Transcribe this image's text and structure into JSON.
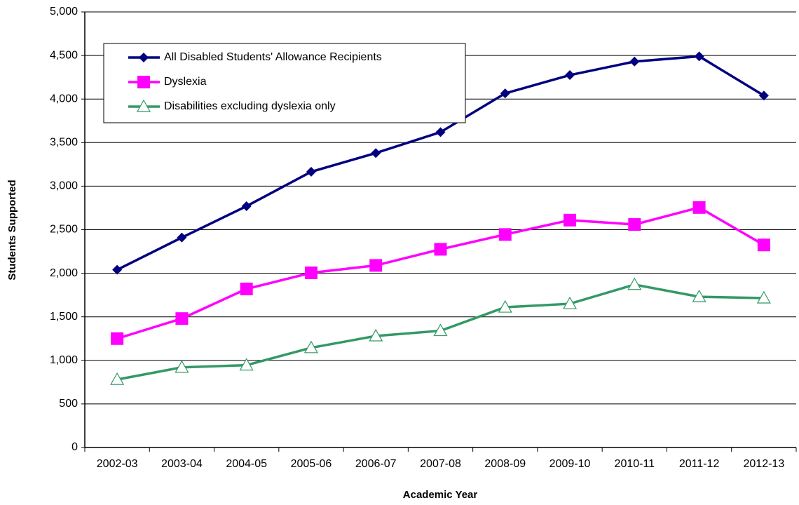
{
  "chart_data": {
    "type": "line",
    "x_label": "Academic Year",
    "y_label": "Students Supported",
    "categories": [
      "2002-03",
      "2003-04",
      "2004-05",
      "2005-06",
      "2006-07",
      "2007-08",
      "2008-09",
      "2009-10",
      "2010-11",
      "2011-12",
      "2012-13"
    ],
    "series": [
      {
        "name": "All Disabled Students' Allowance Recipients",
        "color": "#000080",
        "marker": "diamond",
        "values": [
          2040,
          2410,
          2770,
          3165,
          3380,
          3620,
          4065,
          4275,
          4430,
          4490,
          4040
        ]
      },
      {
        "name": "Dyslexia",
        "color": "#ff00ff",
        "marker": "square",
        "values": [
          1250,
          1480,
          1820,
          2005,
          2090,
          2275,
          2445,
          2610,
          2560,
          2755,
          2325
        ]
      },
      {
        "name": "Disabilities excluding dyslexia only",
        "color": "#339966",
        "marker": "triangle",
        "values": [
          780,
          920,
          945,
          1145,
          1280,
          1340,
          1610,
          1650,
          1870,
          1730,
          1715
        ]
      }
    ],
    "ylim": [
      0,
      5000
    ],
    "yticks": [
      0,
      500,
      {
        "value": 1000,
        "label": "1,000"
      },
      {
        "value": 1500,
        "label": "1,500"
      },
      {
        "value": 2000,
        "label": "2,000"
      },
      {
        "value": 2500,
        "label": "2,500"
      },
      {
        "value": 3000,
        "label": "3,000"
      },
      {
        "value": 3500,
        "label": "3,500"
      },
      {
        "value": 4000,
        "label": "4,000"
      },
      {
        "value": 4500,
        "label": "4,500"
      },
      {
        "value": 5000,
        "label": "5,000"
      }
    ],
    "grid": true,
    "legend": "top-left"
  }
}
